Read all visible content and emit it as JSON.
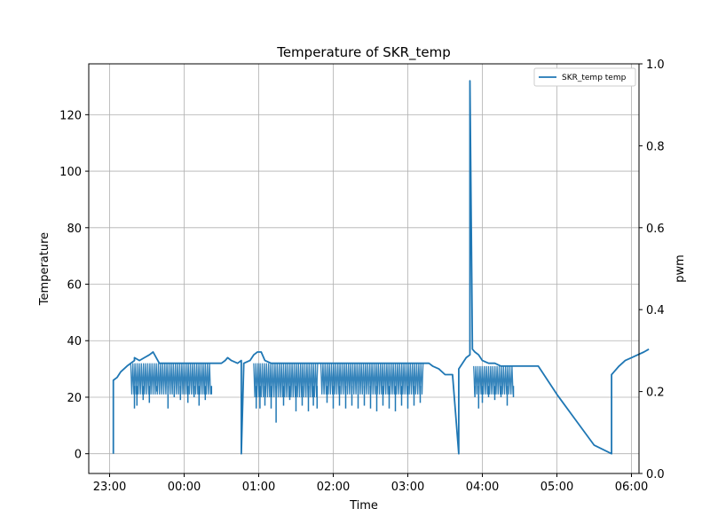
{
  "chart_data": {
    "type": "line",
    "title": "Temperature of SKR_temp",
    "xlabel": "Time",
    "ylabel": "Temperature",
    "y2label": "pwm",
    "x_tick_labels": [
      "23:00",
      "00:00",
      "01:00",
      "02:00",
      "03:00",
      "04:00",
      "05:00",
      "06:00"
    ],
    "y_ticks": [
      0,
      20,
      40,
      60,
      80,
      100,
      120
    ],
    "y2_ticks": [
      "0.0",
      "0.2",
      "0.4",
      "0.6",
      "0.8",
      "1.0"
    ],
    "ylim": [
      -7,
      138
    ],
    "y2lim": [
      0,
      1
    ],
    "grid": true,
    "legend_position": "top-right",
    "series": [
      {
        "name": "SKR_temp temp",
        "color": "#1f77b4",
        "x": [
          "23:03",
          "23:03",
          "23:06",
          "23:09",
          "23:14",
          "23:17",
          "23:20",
          "23:20",
          "23:24",
          "23:28",
          "23:32",
          "23:35",
          "23:40",
          "23:45",
          "23:50",
          "23:55",
          "00:00",
          "00:05",
          "00:10",
          "00:15",
          "00:20",
          "00:25",
          "00:30",
          "00:33",
          "00:35",
          "00:38",
          "00:43",
          "00:46",
          "00:46",
          "00:48",
          "00:53",
          "00:56",
          "00:59",
          "01:02",
          "01:05",
          "01:10",
          "01:20",
          "01:30",
          "01:40",
          "01:48",
          "01:51",
          "01:55",
          "02:00",
          "02:10",
          "02:20",
          "02:30",
          "02:40",
          "02:50",
          "03:00",
          "03:10",
          "03:17",
          "03:20",
          "03:25",
          "03:30",
          "03:36",
          "03:41",
          "03:41",
          "03:44",
          "03:47",
          "03:50",
          "03:50",
          "03:52",
          "03:54",
          "03:57",
          "04:00",
          "04:05",
          "04:10",
          "04:15",
          "04:20",
          "04:25",
          "04:30",
          "04:35",
          "04:39",
          "04:45",
          "05:00",
          "05:15",
          "05:30",
          "05:44",
          "05:44",
          "05:46",
          "05:50",
          "05:55",
          "06:00",
          "06:05",
          "06:10",
          "06:14"
        ],
        "y": [
          0,
          26,
          27,
          29,
          31,
          32,
          33,
          34,
          33,
          34,
          35,
          36,
          32,
          32,
          32,
          32,
          32,
          32,
          32,
          32,
          32,
          32,
          32,
          33,
          34,
          33,
          32,
          33,
          0,
          32,
          33,
          35,
          36,
          36,
          33,
          32,
          32,
          32,
          32,
          32,
          32,
          32,
          32,
          32,
          32,
          32,
          32,
          32,
          32,
          32,
          32,
          31,
          30,
          28,
          28,
          0,
          30,
          32,
          34,
          35,
          132,
          37,
          36,
          35,
          33,
          32,
          32,
          31,
          31,
          31,
          31,
          31,
          31,
          31,
          21,
          12,
          3,
          0,
          28,
          29,
          31,
          33,
          34,
          35,
          36,
          37
        ]
      }
    ],
    "noise_band": [
      {
        "from": "23:17",
        "to": "00:22",
        "top": 32,
        "bottom": 21
      },
      {
        "from": "00:56",
        "to": "01:48",
        "top": 32,
        "bottom": 20
      },
      {
        "from": "01:50",
        "to": "03:13",
        "top": 32,
        "bottom": 21
      },
      {
        "from": "03:53",
        "to": "04:25",
        "top": 31,
        "bottom": 21
      }
    ],
    "dips": [
      [
        "23:20",
        16
      ],
      [
        "23:22",
        17
      ],
      [
        "23:27",
        19
      ],
      [
        "23:32",
        18
      ],
      [
        "23:38",
        22
      ],
      [
        "23:47",
        16
      ],
      [
        "23:52",
        20
      ],
      [
        "23:57",
        19
      ],
      [
        "00:03",
        18
      ],
      [
        "00:08",
        20
      ],
      [
        "00:12",
        17
      ],
      [
        "00:17",
        19
      ],
      [
        "00:22",
        21
      ],
      [
        "00:58",
        16
      ],
      [
        "01:01",
        16
      ],
      [
        "01:05",
        17
      ],
      [
        "01:10",
        16
      ],
      [
        "01:14",
        11
      ],
      [
        "01:20",
        17
      ],
      [
        "01:25",
        19
      ],
      [
        "01:30",
        15
      ],
      [
        "01:35",
        17
      ],
      [
        "01:40",
        15
      ],
      [
        "01:44",
        17
      ],
      [
        "01:47",
        16
      ],
      [
        "01:55",
        18
      ],
      [
        "02:00",
        16
      ],
      [
        "02:05",
        17
      ],
      [
        "02:10",
        16
      ],
      [
        "02:15",
        17
      ],
      [
        "02:20",
        16
      ],
      [
        "02:25",
        17
      ],
      [
        "02:30",
        16
      ],
      [
        "02:35",
        15
      ],
      [
        "02:40",
        17
      ],
      [
        "02:45",
        16
      ],
      [
        "02:50",
        15
      ],
      [
        "02:55",
        17
      ],
      [
        "03:00",
        16
      ],
      [
        "03:05",
        17
      ],
      [
        "03:10",
        18
      ],
      [
        "03:54",
        20
      ],
      [
        "03:57",
        16
      ],
      [
        "04:00",
        18
      ],
      [
        "04:05",
        20
      ],
      [
        "04:10",
        19
      ],
      [
        "04:15",
        20
      ],
      [
        "04:20",
        17
      ],
      [
        "04:25",
        20
      ]
    ]
  }
}
